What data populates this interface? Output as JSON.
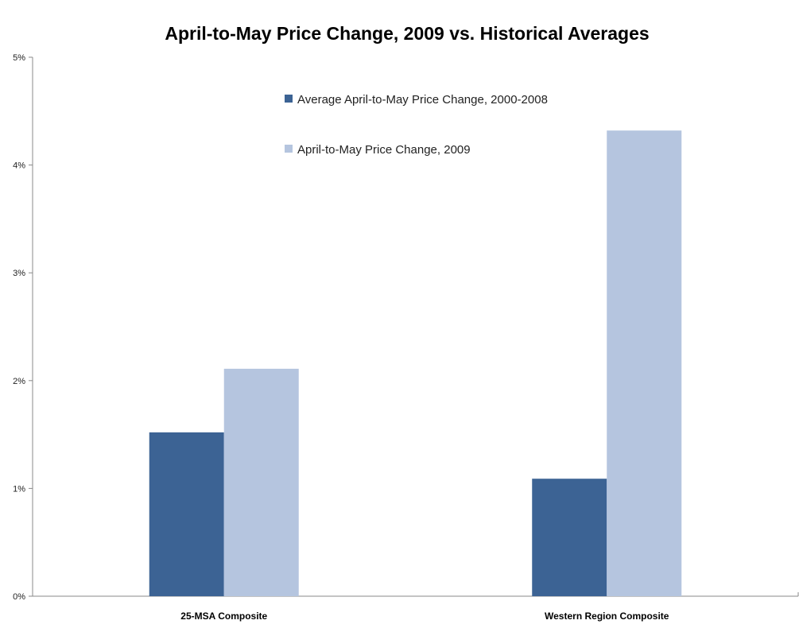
{
  "chart_data": {
    "type": "bar",
    "title": "April-to-May Price Change, 2009 vs. Historical Averages",
    "xlabel": "",
    "ylabel": "",
    "categories": [
      "25-MSA Composite",
      "Western Region Composite"
    ],
    "series": [
      {
        "name": "Average April-to-May Price Change, 2000-2008",
        "color": "#3C6394",
        "values": [
          1.52,
          1.09
        ]
      },
      {
        "name": "April-to-May Price Change, 2009",
        "color": "#B5C5DF",
        "values": [
          2.11,
          4.32
        ]
      }
    ],
    "ylim": [
      0,
      5
    ],
    "yticks": [
      0,
      1,
      2,
      3,
      4,
      5
    ],
    "ytick_labels": [
      "0%",
      "1%",
      "2%",
      "3%",
      "4%",
      "5%"
    ],
    "grid": false,
    "legend_position": "top-center"
  }
}
